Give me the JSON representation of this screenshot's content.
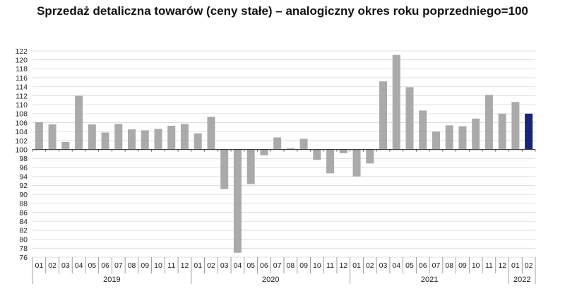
{
  "chart_data": {
    "type": "bar",
    "title": "Sprzedaż detaliczna towarów (ceny stałe) – analogiczny okres roku poprzedniego=100",
    "baseline": 100,
    "ylim": [
      76,
      122
    ],
    "ytick_step": 2,
    "grid": true,
    "categories": [
      "2019-01",
      "2019-02",
      "2019-03",
      "2019-04",
      "2019-05",
      "2019-06",
      "2019-07",
      "2019-08",
      "2019-09",
      "2019-10",
      "2019-11",
      "2019-12",
      "2020-01",
      "2020-02",
      "2020-03",
      "2020-04",
      "2020-05",
      "2020-06",
      "2020-07",
      "2020-08",
      "2020-09",
      "2020-10",
      "2020-11",
      "2020-12",
      "2021-01",
      "2021-02",
      "2021-03",
      "2021-04",
      "2021-05",
      "2021-06",
      "2021-07",
      "2021-08",
      "2021-09",
      "2021-10",
      "2021-11",
      "2021-12",
      "2022-01",
      "2022-02"
    ],
    "month_labels": [
      "01",
      "02",
      "03",
      "04",
      "05",
      "06",
      "07",
      "08",
      "09",
      "10",
      "11",
      "12",
      "01",
      "02",
      "03",
      "04",
      "05",
      "06",
      "07",
      "08",
      "09",
      "10",
      "11",
      "12",
      "01",
      "02",
      "03",
      "04",
      "05",
      "06",
      "07",
      "08",
      "09",
      "10",
      "11",
      "12",
      "01",
      "02"
    ],
    "years": [
      {
        "label": "2019",
        "start": 0,
        "count": 12
      },
      {
        "label": "2020",
        "start": 12,
        "count": 12
      },
      {
        "label": "2021",
        "start": 24,
        "count": 12
      },
      {
        "label": "2022",
        "start": 36,
        "count": 2
      }
    ],
    "values": [
      106.1,
      105.6,
      101.7,
      112.0,
      105.6,
      103.8,
      105.7,
      104.5,
      104.3,
      104.6,
      105.3,
      105.7,
      103.6,
      107.3,
      91.2,
      77.0,
      92.3,
      98.7,
      102.7,
      100.3,
      102.4,
      97.7,
      94.7,
      99.2,
      94.0,
      96.9,
      115.2,
      121.1,
      113.9,
      108.7,
      104.0,
      105.4,
      105.2,
      106.9,
      112.2,
      108.0,
      110.6,
      108.0
    ],
    "colors": {
      "bar": "#aaaaaa",
      "highlight": "#17257a",
      "grid": "#d9d9d9",
      "axis": "#444444"
    },
    "highlight_index": 37
  }
}
